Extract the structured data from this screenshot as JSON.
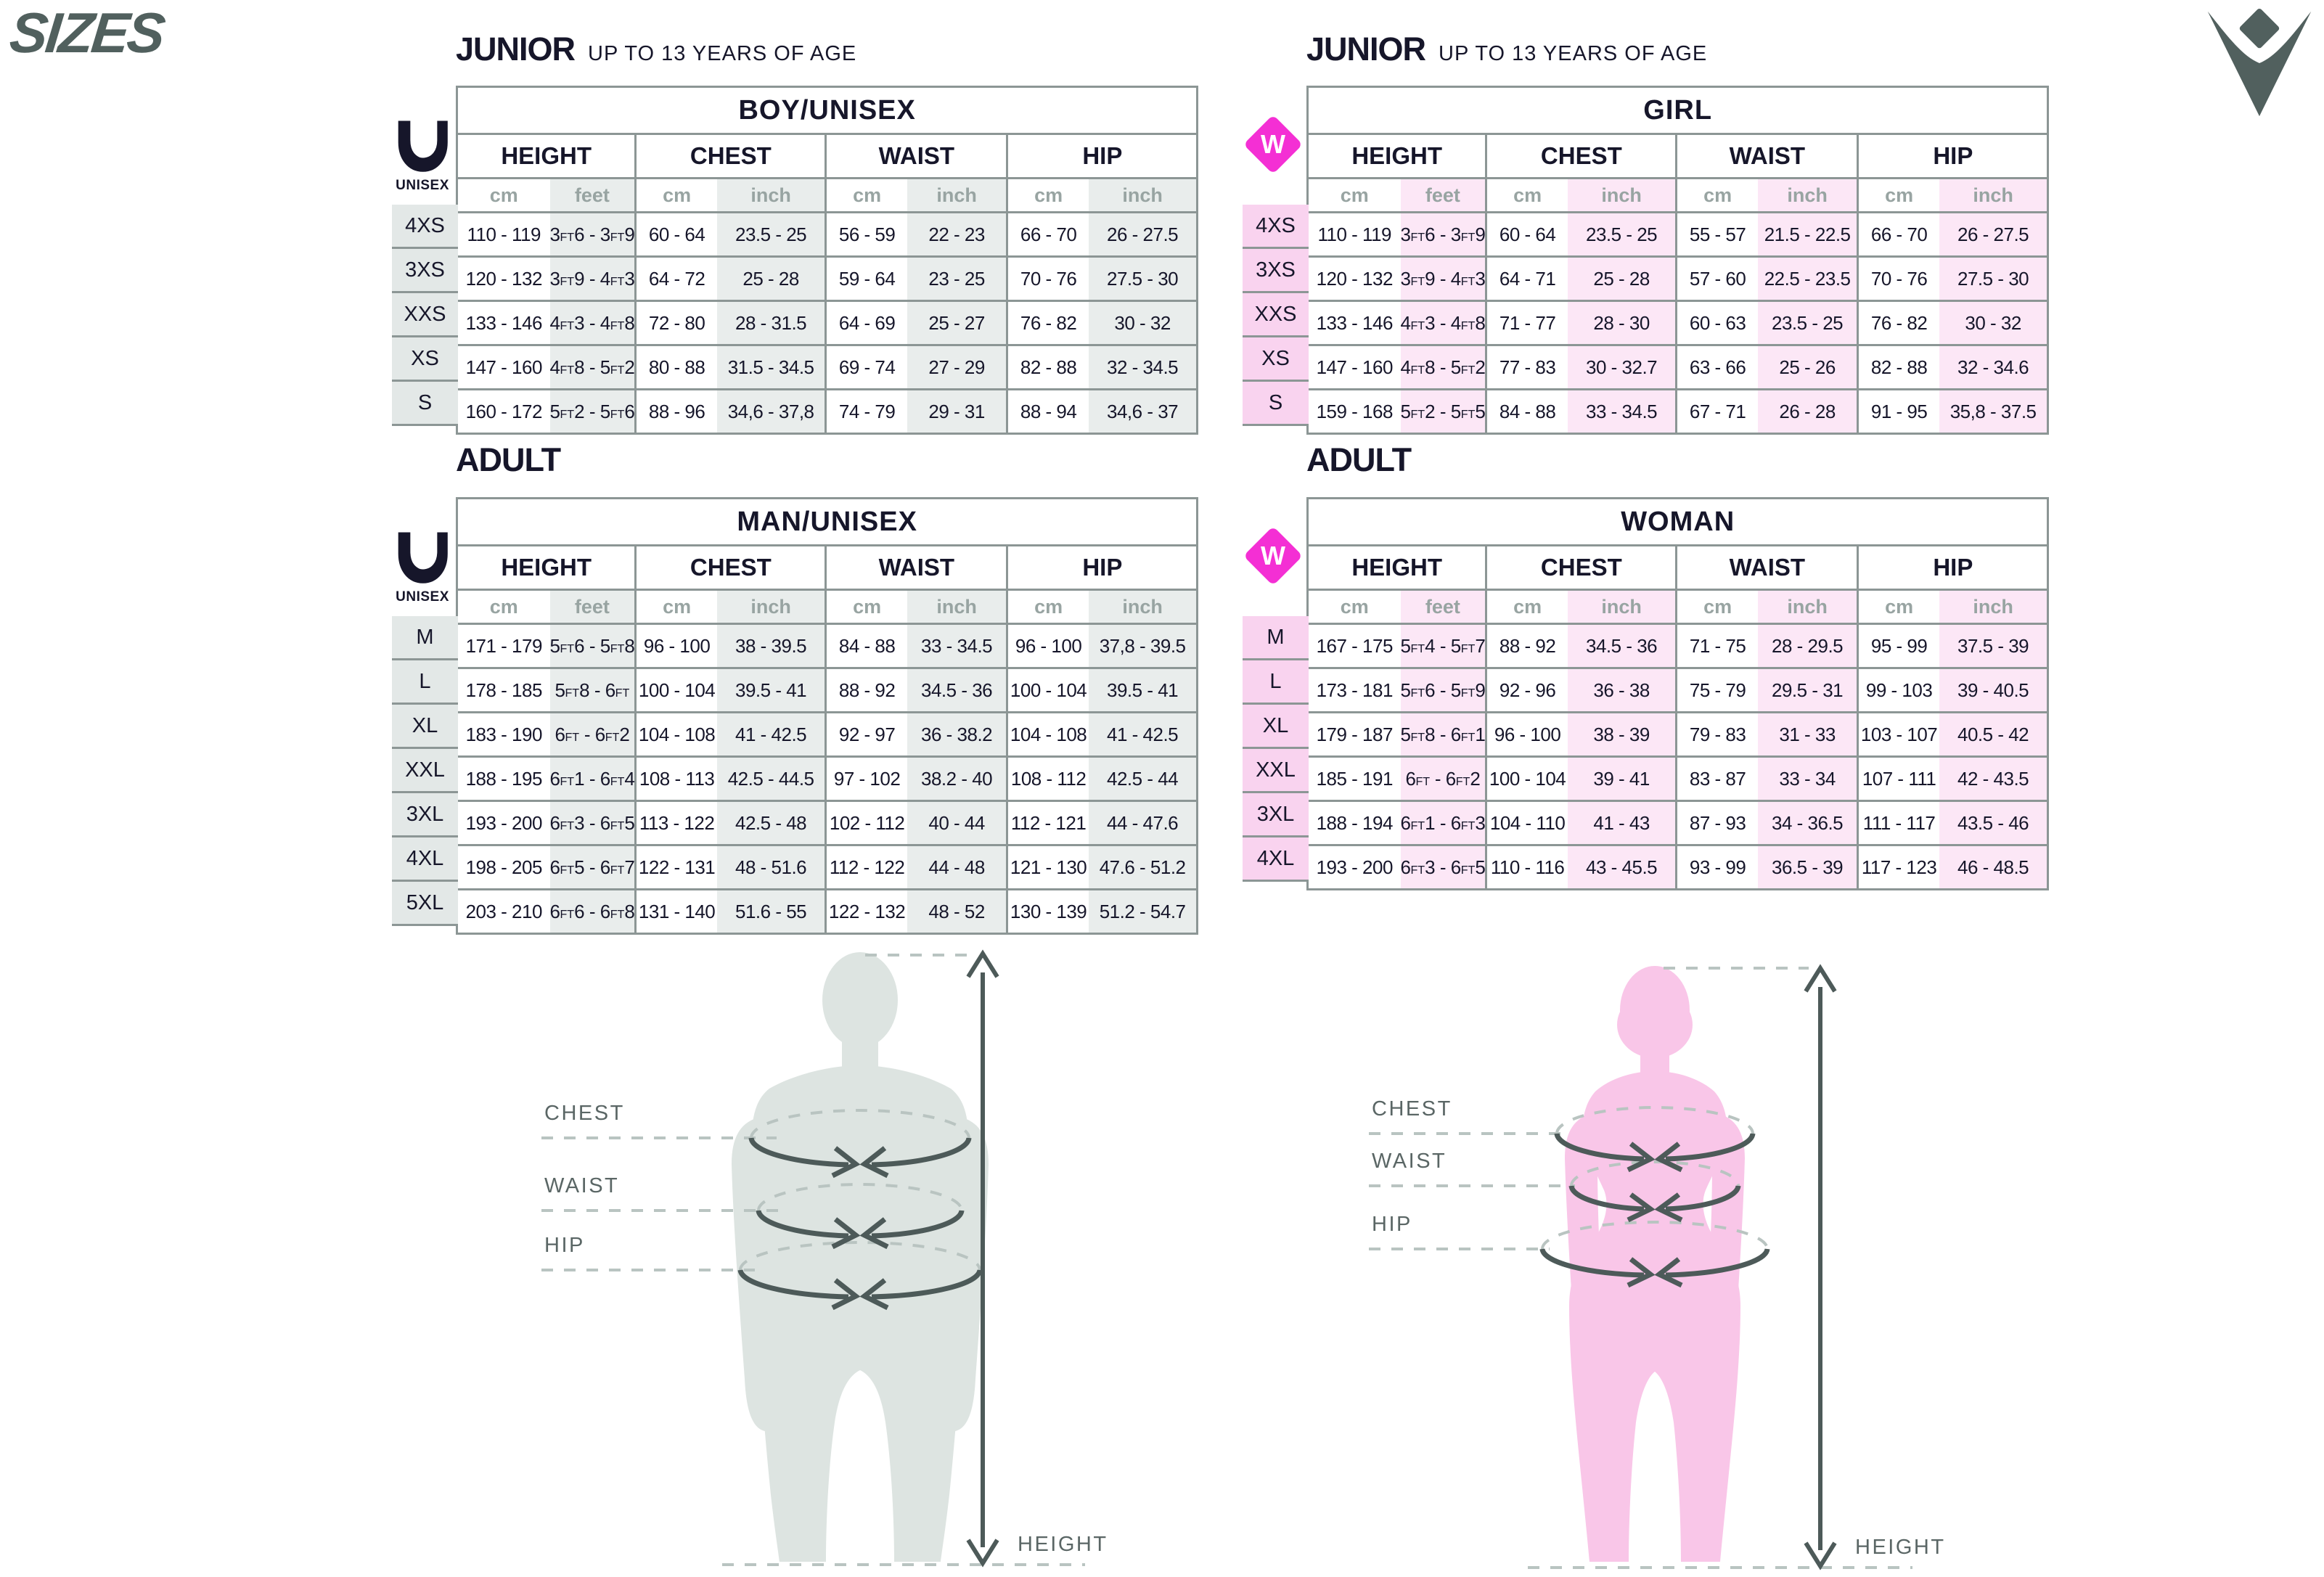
{
  "page": {
    "title": "SIZES"
  },
  "icons": {
    "brand_emblem": "macron-logo",
    "unisex_badge": "unisex-u-logo",
    "woman_badge": "woman-diamond-badge"
  },
  "colors": {
    "ink": "#16162a",
    "slate_accent": "#51605e",
    "table_line": "#8c9695",
    "unit_text": "#98a4a2",
    "gray_stripe": "#e9edec",
    "gray_label": "#e3e8e7",
    "pink_stripe": "#fce7f6",
    "pink_label": "#f9d3ef",
    "magenta_badge": "#f42fd4",
    "man_silhouette": "#dde4e1",
    "woman_silhouette": "#f9c6e8",
    "dash_line": "#b9c4c1",
    "arrow": "#4d5a59"
  },
  "badges": {
    "unisex_letter": "U",
    "unisex_label": "UNISEX",
    "woman_letter": "W"
  },
  "sections": {
    "junior_left": {
      "title": "JUNIOR",
      "subtitle": "UP TO 13 YEARS OF AGE"
    },
    "junior_right": {
      "title": "JUNIOR",
      "subtitle": "UP TO 13 YEARS OF AGE"
    },
    "adult_left": {
      "title": "ADULT",
      "subtitle": ""
    },
    "adult_right": {
      "title": "ADULT",
      "subtitle": ""
    }
  },
  "tables": [
    {
      "id": "junior-boy",
      "group_title": "BOY/UNISEX",
      "theme": "gray",
      "badge": "unisex",
      "columns": [
        "HEIGHT",
        "CHEST",
        "WAIST",
        "HIP"
      ],
      "units": [
        "cm",
        "feet",
        "cm",
        "inch",
        "cm",
        "inch",
        "cm",
        "inch"
      ],
      "rows": [
        {
          "size": "4XS",
          "cells": [
            "110 - 119",
            "3ft6 - 3ft9",
            "60 - 64",
            "23.5 - 25",
            "56 - 59",
            "22 - 23",
            "66 - 70",
            "26 - 27.5"
          ]
        },
        {
          "size": "3XS",
          "cells": [
            "120 - 132",
            "3ft9 - 4ft3",
            "64 - 72",
            "25 - 28",
            "59 - 64",
            "23 - 25",
            "70 - 76",
            "27.5 - 30"
          ]
        },
        {
          "size": "XXS",
          "cells": [
            "133 - 146",
            "4ft3 - 4ft8",
            "72 - 80",
            "28 - 31.5",
            "64 - 69",
            "25 - 27",
            "76 - 82",
            "30 - 32"
          ]
        },
        {
          "size": "XS",
          "cells": [
            "147 - 160",
            "4ft8 - 5ft2",
            "80 - 88",
            "31.5 - 34.5",
            "69 - 74",
            "27 - 29",
            "82 - 88",
            "32 - 34.5"
          ]
        },
        {
          "size": "S",
          "cells": [
            "160 - 172",
            "5ft2 - 5ft6",
            "88 - 96",
            "34,6 - 37,8",
            "74 - 79",
            "29 - 31",
            "88 - 94",
            "34,6 - 37"
          ]
        }
      ]
    },
    {
      "id": "junior-girl",
      "group_title": "GIRL",
      "theme": "pink",
      "badge": "woman",
      "columns": [
        "HEIGHT",
        "CHEST",
        "WAIST",
        "HIP"
      ],
      "units": [
        "cm",
        "feet",
        "cm",
        "inch",
        "cm",
        "inch",
        "cm",
        "inch"
      ],
      "rows": [
        {
          "size": "4XS",
          "cells": [
            "110 - 119",
            "3ft6 - 3ft9",
            "60 - 64",
            "23.5 - 25",
            "55 - 57",
            "21.5 - 22.5",
            "66 - 70",
            "26 - 27.5"
          ]
        },
        {
          "size": "3XS",
          "cells": [
            "120 - 132",
            "3ft9 - 4ft3",
            "64 - 71",
            "25 - 28",
            "57 - 60",
            "22.5 - 23.5",
            "70 - 76",
            "27.5 - 30"
          ]
        },
        {
          "size": "XXS",
          "cells": [
            "133 - 146",
            "4ft3 - 4ft8",
            "71 - 77",
            "28 - 30",
            "60 - 63",
            "23.5 - 25",
            "76 - 82",
            "30 - 32"
          ]
        },
        {
          "size": "XS",
          "cells": [
            "147 - 160",
            "4ft8 - 5ft2",
            "77 - 83",
            "30 - 32.7",
            "63 - 66",
            "25 - 26",
            "82 - 88",
            "32 - 34.6"
          ]
        },
        {
          "size": "S",
          "cells": [
            "159 - 168",
            "5ft2 - 5ft5",
            "84 - 88",
            "33 - 34.5",
            "67 - 71",
            "26 - 28",
            "91 - 95",
            "35,8 - 37.5"
          ]
        }
      ]
    },
    {
      "id": "adult-man",
      "group_title": "MAN/UNISEX",
      "theme": "gray",
      "badge": "unisex",
      "columns": [
        "HEIGHT",
        "CHEST",
        "WAIST",
        "HIP"
      ],
      "units": [
        "cm",
        "feet",
        "cm",
        "inch",
        "cm",
        "inch",
        "cm",
        "inch"
      ],
      "rows": [
        {
          "size": "M",
          "cells": [
            "171 - 179",
            "5ft6 - 5ft8",
            "96 - 100",
            "38 - 39.5",
            "84 - 88",
            "33 - 34.5",
            "96 - 100",
            "37,8 - 39.5"
          ]
        },
        {
          "size": "L",
          "cells": [
            "178 - 185",
            "5ft8 - 6ft",
            "100 - 104",
            "39.5 - 41",
            "88 - 92",
            "34.5 - 36",
            "100 - 104",
            "39.5 - 41"
          ]
        },
        {
          "size": "XL",
          "cells": [
            "183 - 190",
            "6ft - 6ft2",
            "104 - 108",
            "41 - 42.5",
            "92 - 97",
            "36 - 38.2",
            "104 - 108",
            "41 - 42.5"
          ]
        },
        {
          "size": "XXL",
          "cells": [
            "188 - 195",
            "6ft1 - 6ft4",
            "108 - 113",
            "42.5 - 44.5",
            "97 - 102",
            "38.2 - 40",
            "108 - 112",
            "42.5 - 44"
          ]
        },
        {
          "size": "3XL",
          "cells": [
            "193 - 200",
            "6ft3 - 6ft5",
            "113 - 122",
            "42.5 - 48",
            "102 - 112",
            "40 - 44",
            "112 - 121",
            "44 - 47.6"
          ]
        },
        {
          "size": "4XL",
          "cells": [
            "198 - 205",
            "6ft5 - 6ft7",
            "122 - 131",
            "48 - 51.6",
            "112 - 122",
            "44 - 48",
            "121 - 130",
            "47.6 - 51.2"
          ]
        },
        {
          "size": "5XL",
          "cells": [
            "203 - 210",
            "6ft6 - 6ft8",
            "131 - 140",
            "51.6 - 55",
            "122 - 132",
            "48 - 52",
            "130 - 139",
            "51.2 - 54.7"
          ]
        }
      ]
    },
    {
      "id": "adult-woman",
      "group_title": "WOMAN",
      "theme": "pink",
      "badge": "woman",
      "columns": [
        "HEIGHT",
        "CHEST",
        "WAIST",
        "HIP"
      ],
      "units": [
        "cm",
        "feet",
        "cm",
        "inch",
        "cm",
        "inch",
        "cm",
        "inch"
      ],
      "rows": [
        {
          "size": "M",
          "cells": [
            "167 - 175",
            "5ft4 - 5ft7",
            "88 - 92",
            "34.5 - 36",
            "71 - 75",
            "28 - 29.5",
            "95 - 99",
            "37.5 - 39"
          ]
        },
        {
          "size": "L",
          "cells": [
            "173 - 181",
            "5ft6 - 5ft9",
            "92 - 96",
            "36 - 38",
            "75 - 79",
            "29.5 - 31",
            "99 - 103",
            "39 - 40.5"
          ]
        },
        {
          "size": "XL",
          "cells": [
            "179 - 187",
            "5ft8 - 6ft1",
            "96 - 100",
            "38 - 39",
            "79 - 83",
            "31 - 33",
            "103 - 107",
            "40.5 - 42"
          ]
        },
        {
          "size": "XXL",
          "cells": [
            "185 - 191",
            "6ft - 6ft2",
            "100 - 104",
            "39 - 41",
            "83 - 87",
            "33 - 34",
            "107 - 111",
            "42 - 43.5"
          ]
        },
        {
          "size": "3XL",
          "cells": [
            "188 - 194",
            "6ft1 - 6ft3",
            "104 - 110",
            "41 - 43",
            "87 - 93",
            "34 - 36.5",
            "111 - 117",
            "43.5 - 46"
          ]
        },
        {
          "size": "4XL",
          "cells": [
            "193 - 200",
            "6ft3 - 6ft5",
            "110 - 116",
            "43 - 45.5",
            "93 - 99",
            "36.5 - 39",
            "117 - 123",
            "46 - 48.5"
          ]
        }
      ]
    }
  ],
  "figures": {
    "man": {
      "chest": "CHEST",
      "waist": "WAIST",
      "hip": "HIP",
      "height": "HEIGHT"
    },
    "woman": {
      "chest": "CHEST",
      "waist": "WAIST",
      "hip": "HIP",
      "height": "HEIGHT"
    }
  }
}
